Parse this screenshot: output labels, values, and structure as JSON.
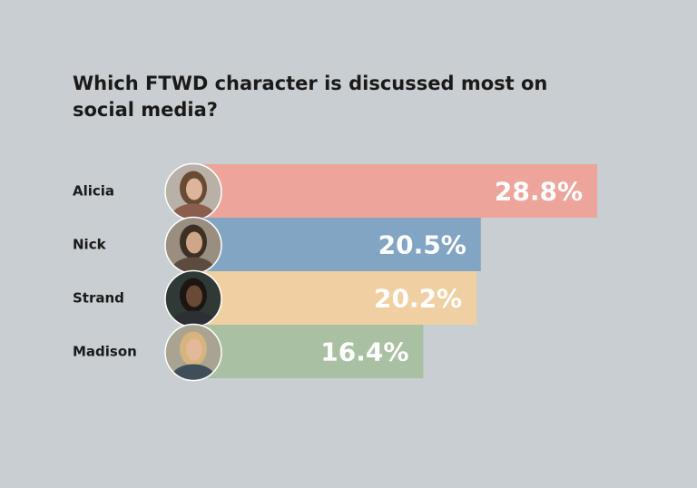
{
  "chart_data": {
    "type": "bar",
    "orientation": "horizontal",
    "title": "Which FTWD character is discussed most on social media?",
    "categories": [
      "Alicia",
      "Nick",
      "Strand",
      "Madison"
    ],
    "values": [
      28.8,
      20.5,
      20.2,
      16.4
    ],
    "value_labels": [
      "28.8%",
      "20.5%",
      "20.2%",
      "16.4%"
    ],
    "colors": [
      "#eda59b",
      "#82a5c3",
      "#f0d0a3",
      "#a9c0a3"
    ],
    "avatars": [
      "alicia-photo",
      "nick-photo",
      "strand-photo",
      "madison-photo"
    ],
    "grid": false,
    "legend": "none"
  }
}
